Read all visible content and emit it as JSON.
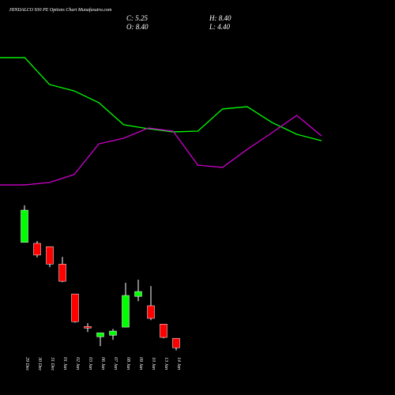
{
  "chart_data": [
    {
      "type": "candlestick",
      "title": "HINDALCO 930 PE Options Chart Munafasutra.com",
      "annotations": [
        "C: 5.25",
        "H: 8.40",
        "O: 8.40",
        "L: 4.40"
      ],
      "categories": [
        "29 Dec",
        "30 Dec",
        "31 Dec",
        "01 Jan",
        "02 Jan",
        "03 Jan",
        "06 Jan",
        "07 Jan",
        "08 Jan",
        "09 Jan",
        "10 Jan",
        "13 Jan",
        "14 Jan"
      ],
      "open": [
        40.2,
        39.9,
        38.8,
        33.0,
        23.1,
        12.3,
        8.9,
        9.4,
        12.1,
        22.3,
        19.2,
        13.1,
        8.4
      ],
      "high": [
        52.5,
        40.7,
        38.8,
        35.4,
        23.1,
        13.4,
        10.2,
        11.5,
        26.8,
        27.8,
        25.7,
        13.1,
        8.4
      ],
      "low": [
        40.2,
        35.2,
        32.0,
        27.0,
        13.6,
        10.5,
        5.8,
        7.9,
        12.1,
        20.7,
        14.4,
        8.4,
        4.4
      ],
      "close": [
        50.9,
        36.0,
        33.0,
        27.3,
        13.9,
        11.8,
        10.2,
        10.8,
        22.6,
        23.9,
        15.0,
        8.7,
        5.25
      ],
      "up_color": "#00ff00",
      "down_color": "#ff0000",
      "ylim": [
        4,
        53
      ]
    },
    {
      "type": "line",
      "categories": [
        null,
        null,
        null,
        null,
        null,
        null,
        null,
        null,
        null,
        null,
        null,
        null,
        null,
        null
      ],
      "series": [
        {
          "color": "#00ff00",
          "values": [
            92.8,
            92.8,
            73.9,
            69.4,
            61.1,
            45.6,
            42.8,
            40.6,
            41.1,
            56.7,
            58.3,
            47.2,
            38.9,
            34.4
          ]
        },
        {
          "color": "#cc00cc",
          "values": [
            3.3,
            3.3,
            5.0,
            10.6,
            32.2,
            36.1,
            43.3,
            41.1,
            17.2,
            15.6,
            28.3,
            40.0,
            52.2,
            37.8
          ]
        }
      ],
      "ylim": [
        0,
        100
      ]
    }
  ]
}
